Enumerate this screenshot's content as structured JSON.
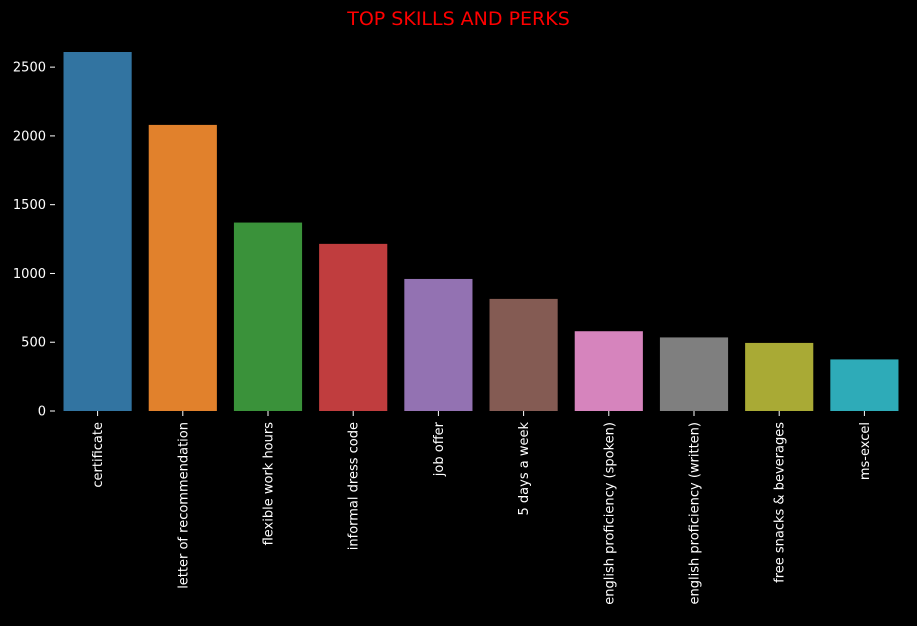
{
  "chart_data": {
    "type": "bar",
    "title": "TOP SKILLS AND PERKS",
    "xlabel": "",
    "ylabel": "",
    "categories": [
      "certificate",
      "letter of recommendation",
      "flexible work hours",
      "informal dress code",
      "job offer",
      "5 days a week",
      "english proficiency (spoken)",
      "english proficiency (written)",
      "free snacks & beverages",
      "ms-excel"
    ],
    "values": [
      2610,
      2080,
      1370,
      1215,
      960,
      815,
      580,
      535,
      495,
      375
    ],
    "ylim": [
      0,
      2610
    ],
    "yticks": [
      0,
      500,
      1000,
      1500,
      2000,
      2500
    ],
    "grid": false,
    "legend": "none"
  },
  "colors": {
    "background": "#000000",
    "title": "#ff0000",
    "text": "#ffffff",
    "bars": [
      "#3274a1",
      "#e1812c",
      "#3a923a",
      "#c03d3e",
      "#9372b2",
      "#845b53",
      "#d684bd",
      "#7f7f7f",
      "#a9aa35",
      "#2eabb8"
    ]
  }
}
